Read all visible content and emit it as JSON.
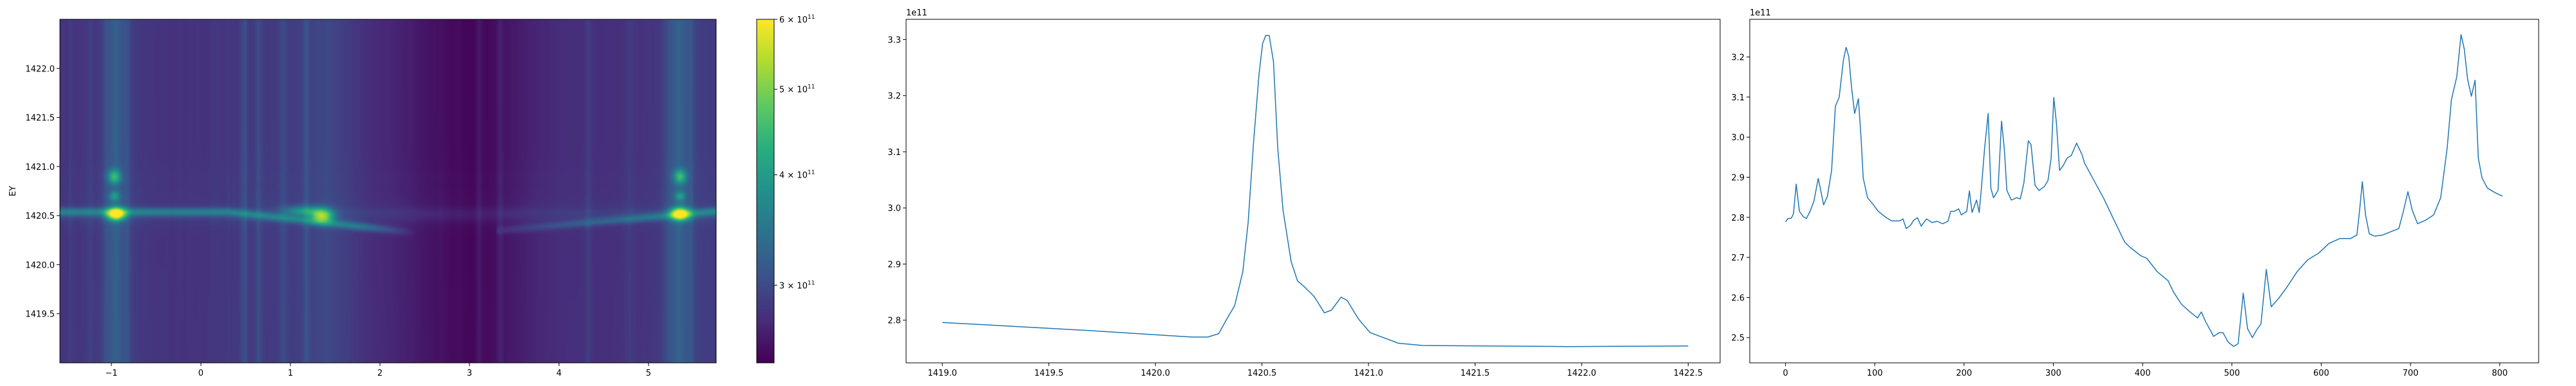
{
  "chart_data": [
    {
      "type": "heatmap",
      "colormap": "viridis",
      "ylabel": "EY",
      "xlim": [
        -1.575,
        5.755
      ],
      "ylim": [
        1419.0,
        1422.5
      ],
      "xticks": [
        -1,
        0,
        1,
        2,
        3,
        4,
        5
      ],
      "xtick_labels": [
        "−1",
        "0",
        "1",
        "2",
        "3",
        "4",
        "5"
      ],
      "yticks": [
        1419.5,
        1420.0,
        1420.5,
        1421.0,
        1421.5,
        1422.0
      ],
      "ytick_labels": [
        "1419.5",
        "1420.0",
        "1420.5",
        "1421.0",
        "1421.5",
        "1422.0"
      ],
      "colorbar": {
        "scale": "log",
        "range": [
          245000000000.0,
          600000000000.0
        ],
        "ticks": [
          {
            "value": 300000000000.0,
            "mantissa": "3 × 10",
            "exponent": "11"
          },
          {
            "value": 400000000000.0,
            "mantissa": "4 × 10",
            "exponent": "11"
          },
          {
            "value": 500000000000.0,
            "mantissa": "5 × 10",
            "exponent": "11"
          },
          {
            "value": 600000000000.0,
            "mantissa": "6 × 10",
            "exponent": "11"
          }
        ]
      }
    },
    {
      "type": "line",
      "color": "#1f77b4",
      "offset_label": "1e11",
      "xlim": [
        1418.83,
        1422.65
      ],
      "ylim": [
        2.724,
        3.336
      ],
      "xticks": [
        1419.0,
        1419.5,
        1420.0,
        1420.5,
        1421.0,
        1421.5,
        1422.0,
        1422.5
      ],
      "xtick_labels": [
        "1419.0",
        "1419.5",
        "1420.0",
        "1420.5",
        "1421.0",
        "1421.5",
        "1422.0",
        "1422.5"
      ],
      "yticks": [
        2.8,
        2.9,
        3.0,
        3.1,
        3.2,
        3.3
      ],
      "ytick_labels": [
        "2.8",
        "2.9",
        "3.0",
        "3.1",
        "3.2",
        "3.3"
      ],
      "x": [
        1419.0,
        1419.667,
        1420.17,
        1420.246,
        1420.297,
        1420.335,
        1420.372,
        1420.41,
        1420.435,
        1420.46,
        1420.486,
        1420.503,
        1420.518,
        1420.534,
        1420.554,
        1420.574,
        1420.599,
        1420.637,
        1420.667,
        1420.7,
        1420.745,
        1420.793,
        1420.826,
        1420.871,
        1420.9,
        1420.953,
        1421.007,
        1421.14,
        1421.254,
        1421.934,
        1422.5
      ],
      "y": [
        2.796,
        2.782,
        2.77,
        2.77,
        2.776,
        2.802,
        2.826,
        2.886,
        2.974,
        3.115,
        3.238,
        3.293,
        3.307,
        3.307,
        3.26,
        3.106,
        2.996,
        2.904,
        2.87,
        2.859,
        2.842,
        2.813,
        2.818,
        2.841,
        2.835,
        2.802,
        2.778,
        2.759,
        2.755,
        2.753,
        2.754
      ]
    },
    {
      "type": "line",
      "color": "#1f77b4",
      "offset_label": "1e11",
      "xlim": [
        -40,
        843.5
      ],
      "ylim": [
        2.437,
        3.294
      ],
      "xticks": [
        0,
        100,
        200,
        300,
        400,
        500,
        600,
        700,
        800
      ],
      "xtick_labels": [
        "0",
        "100",
        "200",
        "300",
        "400",
        "500",
        "600",
        "700",
        "800"
      ],
      "yticks": [
        2.5,
        2.6,
        2.7,
        2.8,
        2.9,
        3.0,
        3.1,
        3.2
      ],
      "ytick_labels": [
        "2.5",
        "2.6",
        "2.7",
        "2.8",
        "2.9",
        "3.0",
        "3.1",
        "3.2"
      ],
      "x": [
        0,
        3,
        6.6,
        9,
        12,
        15.6,
        19.8,
        23.4,
        27.6,
        31.9,
        36.7,
        39,
        42.7,
        46.9,
        51.7,
        55.9,
        60.1,
        65,
        67.9,
        70.9,
        73.9,
        77.5,
        81.7,
        84.7,
        87.1,
        91.9,
        97.9,
        103.9,
        113,
        119,
        128,
        131.6,
        135.2,
        140,
        143.6,
        147.8,
        152,
        158,
        164,
        170,
        176,
        182,
        185,
        189,
        194,
        197,
        203,
        206,
        209,
        214,
        217,
        219,
        223,
        227,
        230,
        233,
        238,
        242,
        245,
        248,
        253,
        259,
        263,
        267,
        272,
        275,
        279.5,
        284,
        290,
        294,
        297.5,
        300.5,
        303.5,
        307,
        311,
        315.5,
        320,
        326,
        332,
        335,
        344,
        356,
        368,
        380,
        386,
        398,
        404.5,
        416.5,
        428.5,
        434.5,
        443.5,
        452.5,
        461.5,
        465.7,
        470.5,
        479.5,
        485.5,
        490,
        496,
        502,
        507,
        512.7,
        517.5,
        522.9,
        527.7,
        532.5,
        538.5,
        544,
        551.7,
        560.7,
        572.8,
        584.8,
        596.8,
        608.8,
        620.8,
        632.9,
        640,
        643,
        646,
        649.6,
        653.8,
        659.8,
        668.9,
        677.9,
        686.9,
        691.7,
        697.1,
        701.9,
        707.9,
        716.9,
        725.9,
        733.8,
        741,
        745.8,
        751.8,
        756.6,
        760.3,
        763.9,
        768.1,
        772.3,
        775.9,
        780.1,
        786.1,
        795.1,
        803
      ],
      "y": [
        2.789,
        2.797,
        2.798,
        2.809,
        2.883,
        2.815,
        2.802,
        2.797,
        2.815,
        2.841,
        2.897,
        2.873,
        2.831,
        2.852,
        2.917,
        3.077,
        3.099,
        3.194,
        3.224,
        3.201,
        3.127,
        3.059,
        3.096,
        2.997,
        2.898,
        2.849,
        2.833,
        2.815,
        2.799,
        2.791,
        2.791,
        2.796,
        2.772,
        2.78,
        2.793,
        2.799,
        2.778,
        2.796,
        2.787,
        2.79,
        2.784,
        2.79,
        2.815,
        2.815,
        2.821,
        2.806,
        2.815,
        2.866,
        2.812,
        2.843,
        2.812,
        2.861,
        2.972,
        3.059,
        2.873,
        2.849,
        2.867,
        3.04,
        2.972,
        2.867,
        2.843,
        2.849,
        2.846,
        2.886,
        2.991,
        2.981,
        2.88,
        2.867,
        2.877,
        2.892,
        2.948,
        3.099,
        3.034,
        2.917,
        2.929,
        2.948,
        2.954,
        2.985,
        2.957,
        2.935,
        2.898,
        2.849,
        2.793,
        2.738,
        2.725,
        2.704,
        2.698,
        2.664,
        2.642,
        2.614,
        2.583,
        2.565,
        2.549,
        2.564,
        2.54,
        2.503,
        2.512,
        2.512,
        2.488,
        2.478,
        2.485,
        2.611,
        2.522,
        2.5,
        2.519,
        2.534,
        2.67,
        2.577,
        2.596,
        2.623,
        2.664,
        2.694,
        2.71,
        2.735,
        2.747,
        2.747,
        2.756,
        2.818,
        2.889,
        2.806,
        2.759,
        2.753,
        2.756,
        2.764,
        2.772,
        2.812,
        2.864,
        2.818,
        2.784,
        2.793,
        2.806,
        2.849,
        2.972,
        3.093,
        3.151,
        3.256,
        3.219,
        3.145,
        3.102,
        3.142,
        2.948,
        2.898,
        2.873,
        2.861,
        2.853
      ]
    }
  ]
}
